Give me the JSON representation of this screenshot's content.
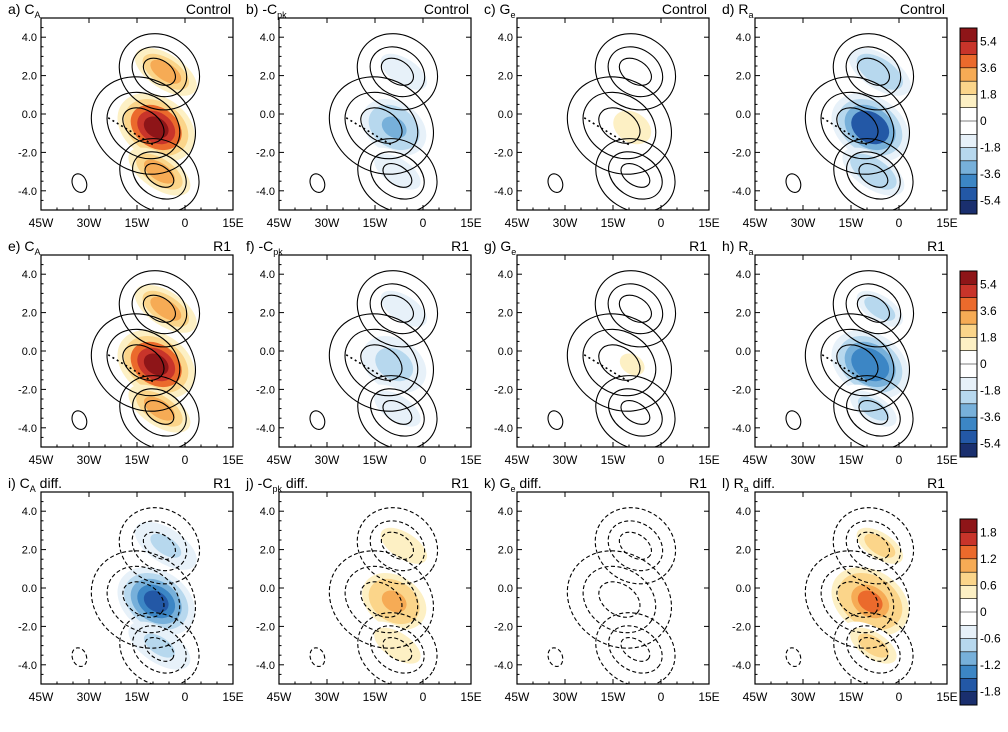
{
  "chart_data": {
    "type": "heatmap",
    "x_ticks": [
      "45W",
      "30W",
      "15W",
      "0",
      "15E"
    ],
    "y_ticks": [
      "4.0",
      "2.0",
      "0.0",
      "-2.0",
      "-4.0"
    ],
    "xlim": [
      -45,
      15
    ],
    "ylim": [
      -5,
      5
    ],
    "colormap": [
      "#1a2f6e",
      "#2358a6",
      "#3c86c5",
      "#77b0da",
      "#b7d8ee",
      "#e7f1f9",
      "#ffffff",
      "#ffffff",
      "#fdf0c4",
      "#fbd58a",
      "#f6ab55",
      "#eb6a2c",
      "#c8342a",
      "#8e1518"
    ],
    "colorbars": [
      {
        "ticks": [
          "5.4",
          "3.6",
          "1.8",
          "0",
          "-1.8",
          "-3.6",
          "-5.4"
        ]
      },
      {
        "ticks": [
          "5.4",
          "3.6",
          "1.8",
          "0",
          "-1.8",
          "-3.6",
          "-5.4"
        ]
      },
      {
        "ticks": [
          "1.8",
          "1.2",
          "0.6",
          "0",
          "-0.6",
          "-1.2",
          "-1.8"
        ]
      }
    ],
    "panels": [
      {
        "label": "a) C",
        "sub": "A",
        "suffix": "",
        "tag": "Control",
        "row": 0,
        "col": 0,
        "mean_sign": 1,
        "mean_peak": 0.95,
        "diff_sign": 0,
        "diff_peak": 0
      },
      {
        "label": "b) -C",
        "sub": "pk",
        "suffix": "",
        "tag": "Control",
        "row": 0,
        "col": 1,
        "mean_sign": -1,
        "mean_peak": 0.45,
        "diff_sign": 0,
        "diff_peak": 0
      },
      {
        "label": "c) G",
        "sub": "e",
        "suffix": "",
        "tag": "Control",
        "row": 0,
        "col": 2,
        "mean_sign": 1,
        "mean_peak": 0.18,
        "diff_sign": 0,
        "diff_peak": 0
      },
      {
        "label": "d) R",
        "sub": "a",
        "suffix": "",
        "tag": "Control",
        "row": 0,
        "col": 3,
        "mean_sign": -1,
        "mean_peak": 0.85,
        "diff_sign": 0,
        "diff_peak": 0
      },
      {
        "label": "e) C",
        "sub": "A",
        "suffix": "",
        "tag": "R1",
        "row": 1,
        "col": 0,
        "mean_sign": 1,
        "mean_peak": 0.9,
        "diff_sign": 0,
        "diff_peak": 0
      },
      {
        "label": "f) -C",
        "sub": "pk",
        "suffix": "",
        "tag": "R1",
        "row": 1,
        "col": 1,
        "mean_sign": -1,
        "mean_peak": 0.4,
        "diff_sign": 0,
        "diff_peak": 0
      },
      {
        "label": "g) G",
        "sub": "e",
        "suffix": "",
        "tag": "R1",
        "row": 1,
        "col": 2,
        "mean_sign": 1,
        "mean_peak": 0.15,
        "diff_sign": 0,
        "diff_peak": 0
      },
      {
        "label": "h) R",
        "sub": "a",
        "suffix": "",
        "tag": "R1",
        "row": 1,
        "col": 3,
        "mean_sign": -1,
        "mean_peak": 0.7,
        "diff_sign": 0,
        "diff_peak": 0
      },
      {
        "label": "i) C",
        "sub": "A",
        "suffix": " diff.",
        "tag": "R1",
        "row": 2,
        "col": 0,
        "mean_sign": 0,
        "mean_peak": 0,
        "diff_sign": -1,
        "diff_peak": 0.75
      },
      {
        "label": "j) -C",
        "sub": "pk",
        "suffix": " diff.",
        "tag": "R1",
        "row": 2,
        "col": 1,
        "mean_sign": 0,
        "mean_peak": 0,
        "diff_sign": 1,
        "diff_peak": 0.5
      },
      {
        "label": "k) G",
        "sub": "e",
        "suffix": " diff.",
        "tag": "R1",
        "row": 2,
        "col": 2,
        "mean_sign": 0,
        "mean_peak": 0,
        "diff_sign": 1,
        "diff_peak": 0.05
      },
      {
        "label": "l) R",
        "sub": "a",
        "suffix": " diff.",
        "tag": "R1",
        "row": 2,
        "col": 3,
        "mean_sign": 0,
        "mean_peak": 0,
        "diff_sign": 1,
        "diff_peak": 0.65
      }
    ]
  }
}
